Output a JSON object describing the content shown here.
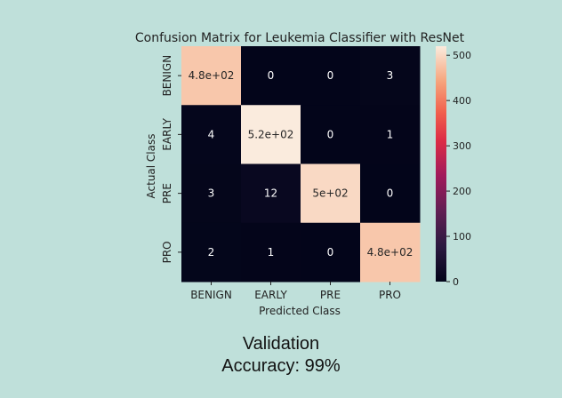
{
  "chart_data": {
    "type": "heatmap",
    "title": "Confusion Matrix for Leukemia Classifier with ResNet",
    "xlabel": "Predicted Class",
    "ylabel": "Actual Class",
    "x_categories": [
      "BENIGN",
      "EARLY",
      "PRE",
      "PRO"
    ],
    "y_categories": [
      "BENIGN",
      "EARLY",
      "PRE",
      "PRO"
    ],
    "values": [
      [
        480,
        0,
        0,
        3
      ],
      [
        4,
        520,
        0,
        1
      ],
      [
        3,
        12,
        500,
        0
      ],
      [
        2,
        1,
        0,
        480
      ]
    ],
    "cell_labels": [
      [
        "4.8e+02",
        "0",
        "0",
        "3"
      ],
      [
        "4",
        "5.2e+02",
        "0",
        "1"
      ],
      [
        "3",
        "12",
        "5e+02",
        "0"
      ],
      [
        "2",
        "1",
        "0",
        "4.8e+02"
      ]
    ],
    "colorbar": {
      "range": [
        0,
        520
      ],
      "ticks": [
        0,
        100,
        200,
        300,
        400,
        500
      ],
      "colormap": "rocket"
    },
    "grid": false
  },
  "caption": {
    "line1": "Validation",
    "line2": "Accuracy: 99%"
  },
  "colors": {
    "background": "#bfe0da",
    "text": "#222222"
  }
}
